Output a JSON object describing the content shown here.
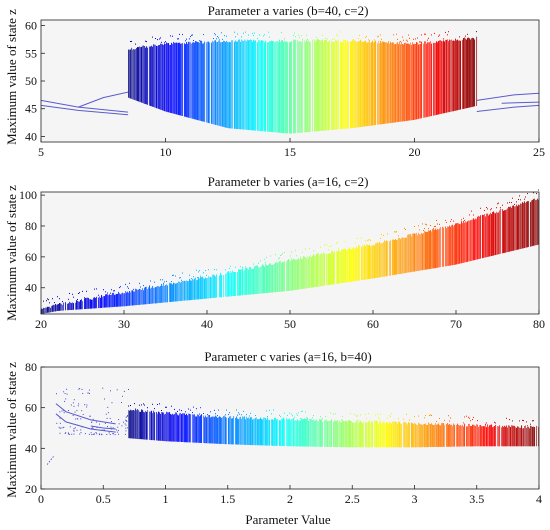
{
  "figure": {
    "xlabel": "Parameter Value"
  },
  "chart_data": [
    {
      "type": "scatter",
      "title": "Parameter a varies (b=40, c=2)",
      "xlabel": "",
      "ylabel": "Maximum value of state z",
      "xlim": [
        5,
        25
      ],
      "ylim": [
        39,
        61
      ],
      "xticks": [
        "5",
        "10",
        "15",
        "20",
        "25"
      ],
      "yticks": [
        "40",
        "45",
        "50",
        "55",
        "60"
      ],
      "grid": false,
      "colormap": "jet",
      "background": "#f5f5f5",
      "periodic_color": "#5a5ad0",
      "chaos_range_x": [
        8.5,
        22.5
      ],
      "chaos_band": [
        {
          "x": 8.5,
          "lower": 47,
          "upper": 56
        },
        {
          "x": 10,
          "lower": 44.5,
          "upper": 57
        },
        {
          "x": 12.5,
          "lower": 41.5,
          "upper": 57.5
        },
        {
          "x": 15,
          "lower": 40.5,
          "upper": 57.5
        },
        {
          "x": 17.5,
          "lower": 41.5,
          "upper": 57.5
        },
        {
          "x": 20,
          "lower": 43,
          "upper": 57
        },
        {
          "x": 22.5,
          "lower": 45.5,
          "upper": 58
        }
      ],
      "periodic_branches": [
        {
          "x": [
            5,
            6.5,
            8.5
          ],
          "y": [
            46.5,
            45.3,
            44.4
          ]
        },
        {
          "x": [
            5,
            6.5,
            8.5
          ],
          "y": [
            45.6,
            44.7,
            43.9
          ]
        },
        {
          "x": [
            6.5,
            7.5,
            8.5
          ],
          "y": [
            45.3,
            47.0,
            48.0
          ]
        },
        {
          "x": [
            22.5,
            24,
            25
          ],
          "y": [
            46.5,
            47.5,
            47.8
          ]
        },
        {
          "x": [
            22.5,
            24,
            25
          ],
          "y": [
            44.5,
            45.3,
            45.6
          ]
        },
        {
          "x": [
            23.5,
            25
          ],
          "y": [
            46.0,
            46.2
          ]
        }
      ]
    },
    {
      "type": "scatter",
      "title": "Parameter b varies (a=16, c=2)",
      "xlabel": "",
      "ylabel": "Maximum value of state z",
      "xlim": [
        20,
        80
      ],
      "ylim": [
        23,
        102
      ],
      "xticks": [
        "20",
        "30",
        "40",
        "50",
        "60",
        "70",
        "80"
      ],
      "yticks": [
        "40",
        "60",
        "80",
        "100"
      ],
      "grid": false,
      "colormap": "jet",
      "background": "#f5f5f5",
      "chaos_range_x": [
        20,
        80
      ],
      "chaos_band": [
        {
          "x": 20,
          "lower": 23,
          "upper": 27
        },
        {
          "x": 22,
          "lower": 25,
          "upper": 30
        },
        {
          "x": 30,
          "lower": 28,
          "upper": 38
        },
        {
          "x": 40,
          "lower": 33,
          "upper": 48
        },
        {
          "x": 50,
          "lower": 38,
          "upper": 59
        },
        {
          "x": 60,
          "lower": 46,
          "upper": 69
        },
        {
          "x": 70,
          "lower": 55,
          "upper": 82
        },
        {
          "x": 80,
          "lower": 68,
          "upper": 99
        }
      ]
    },
    {
      "type": "scatter",
      "title": "Parameter c varies (a=16, b=40)",
      "xlabel": "Parameter Value",
      "ylabel": "Maximum value of state z",
      "xlim": [
        0,
        4
      ],
      "ylim": [
        20,
        80
      ],
      "xticks": [
        "0",
        "0.5",
        "1",
        "1.5",
        "2",
        "2.5",
        "3",
        "3.5",
        "4"
      ],
      "yticks": [
        "20",
        "40",
        "60",
        "80"
      ],
      "grid": false,
      "colormap": "jet",
      "background": "#f5f5f5",
      "periodic_color": "#5a5ad0",
      "chaos_range_x": [
        0.7,
        4
      ],
      "chaos_band": [
        {
          "x": 0.7,
          "lower": 45,
          "upper": 60
        },
        {
          "x": 1,
          "lower": 43.5,
          "upper": 58
        },
        {
          "x": 1.5,
          "lower": 42,
          "upper": 56
        },
        {
          "x": 2,
          "lower": 41,
          "upper": 55
        },
        {
          "x": 2.5,
          "lower": 40.5,
          "upper": 54
        },
        {
          "x": 3,
          "lower": 40.5,
          "upper": 53
        },
        {
          "x": 3.5,
          "lower": 41,
          "upper": 52
        },
        {
          "x": 4,
          "lower": 41,
          "upper": 51
        }
      ],
      "periodic_branches": [
        {
          "x": [
            0.05,
            0.08,
            0.1
          ],
          "y": [
            32,
            34.5,
            36
          ]
        },
        {
          "x": [
            0.12,
            0.2,
            0.4,
            0.6
          ],
          "y": [
            62,
            58,
            54,
            52
          ]
        },
        {
          "x": [
            0.12,
            0.2,
            0.4,
            0.6
          ],
          "y": [
            57,
            53,
            49.5,
            48
          ]
        },
        {
          "x": [
            0.4,
            0.5,
            0.6
          ],
          "y": [
            51,
            50,
            49.5
          ]
        }
      ],
      "sparse_region": {
        "x": [
          0.12,
          0.7
        ],
        "lower": 47,
        "upper": 70
      }
    }
  ]
}
